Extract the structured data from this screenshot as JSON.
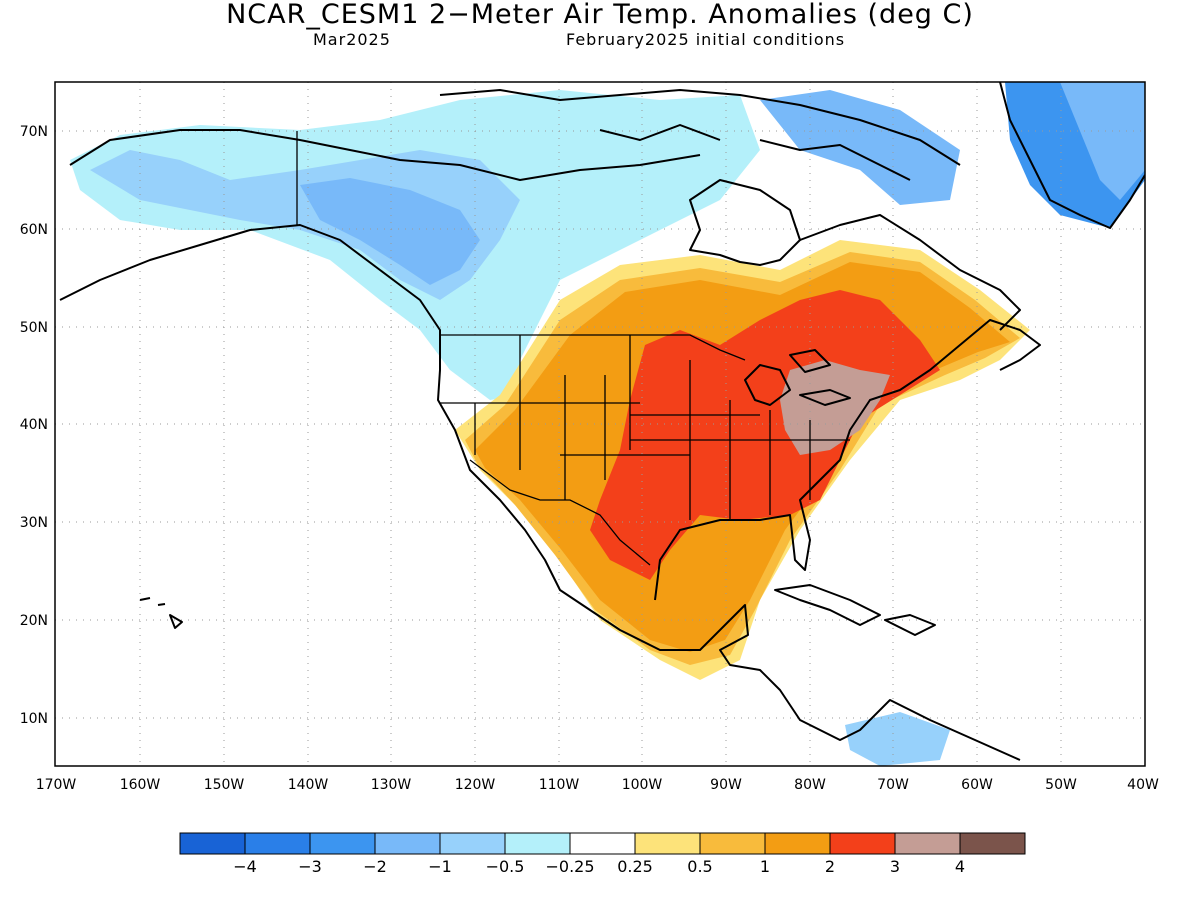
{
  "title": "NCAR_CESM1 2−Meter Air Temp. Anomalies (deg C)",
  "subtitle_left": "Mar2025",
  "subtitle_right": "February2025 initial conditions",
  "lat_labels": [
    "70N",
    "60N",
    "50N",
    "40N",
    "30N",
    "20N",
    "10N"
  ],
  "lon_labels": [
    "170W",
    "160W",
    "150W",
    "140W",
    "130W",
    "120W",
    "110W",
    "100W",
    "90W",
    "80W",
    "70W",
    "60W",
    "50W",
    "40W"
  ],
  "colorbar": {
    "colors": [
      "#1863d6",
      "#2a7fe8",
      "#3c95f0",
      "#78b9f9",
      "#97d1fb",
      "#b4f0fa",
      "#ffffff",
      "#fde37a",
      "#f8bb3c",
      "#f39d13",
      "#f3401a",
      "#c49d95",
      "#7b544b"
    ],
    "labels": [
      "−4",
      "−3",
      "−2",
      "−1",
      "−0.5",
      "−0.25",
      "0.25",
      "0.5",
      "1",
      "2",
      "3",
      "4"
    ]
  },
  "anomaly_colors": {
    "neg_2": "#3c95f0",
    "neg_1": "#78b9f9",
    "neg_0_5": "#97d1fb",
    "neg_0_25": "#b4f0fa",
    "pos_0_25": "#fde37a",
    "pos_0_5": "#f8bb3c",
    "pos_1": "#f39d13",
    "pos_2": "#f3401a",
    "pos_3": "#c49d95"
  }
}
